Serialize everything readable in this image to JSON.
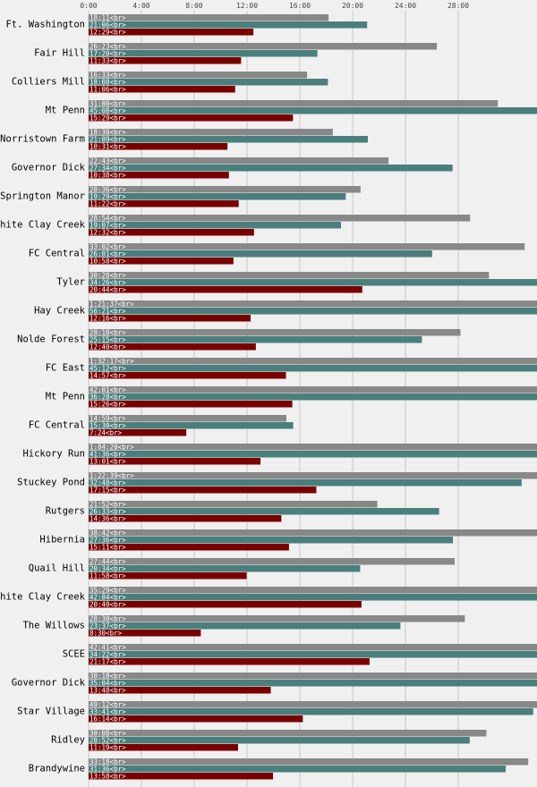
{
  "chart_data": {
    "type": "bar",
    "orientation": "horizontal",
    "grid": true,
    "xlim_minutes": [
      0,
      34
    ],
    "x_ticks": [
      "0:00",
      "4:00",
      "8:00",
      "12:00",
      "16:00",
      "20:00",
      "24:00",
      "28:00"
    ],
    "colors": [
      "#888888",
      "#4a7f7d",
      "#7a0000"
    ],
    "categories": [
      "Ft. Washington",
      "Fair Hill",
      "Colliers Mill",
      "Mt Penn",
      "Norristown Farm",
      "Governor Dick",
      "Springton Manor",
      "White Clay Creek",
      "FC Central",
      "Tyler",
      "Hay Creek",
      "Nolde Forest",
      "FC East",
      "Mt Penn",
      "FC Central",
      "Hickory Run",
      "Stuckey Pond",
      "Rutgers",
      "Hibernia",
      "Quail Hill",
      "White Clay Creek",
      "The Willows",
      "SCEE",
      "Governor Dick",
      "Star Village",
      "Ridley",
      "Brandywine"
    ],
    "series": [
      {
        "values": [
          18.18,
          26.38,
          16.55,
          31.0,
          18.5,
          22.72,
          20.6,
          28.9,
          33.03,
          30.33,
          81.62,
          28.17,
          92.28,
          42.02,
          14.98,
          64.33,
          82.65,
          21.87,
          38.7,
          27.73,
          35.48,
          28.5,
          42.68,
          38.3,
          49.2,
          30.13,
          33.3
        ],
        "labels": [
          "18:11<br>",
          "26:23<br>",
          "16:33<br>",
          "31:00<br>",
          "18:30<br>",
          "22:43<br>",
          "20:36<br>",
          "28:54<br>",
          "33:02<br>",
          "30:20<br>",
          "1:21:37<br>",
          "28:10<br>",
          "1:32:17<br>",
          "42:01<br>",
          "14:59<br>",
          "1:04:20<br>",
          "1:22:39<br>",
          "21:52<br>",
          "38:42<br>",
          "27:44<br>",
          "35:29<br>",
          "28:30<br>",
          "42:41<br>",
          "38:18<br>",
          "49:12<br>",
          "30:08<br>",
          "33:18<br>"
        ]
      },
      {
        "values": [
          21.1,
          17.33,
          18.13,
          45.13,
          21.15,
          27.57,
          19.48,
          19.12,
          26.02,
          34.43,
          56.35,
          25.25,
          45.2,
          36.47,
          15.5,
          41.6,
          32.8,
          26.55,
          27.6,
          20.57,
          42.07,
          23.62,
          34.37,
          35.07,
          33.68,
          28.87,
          31.6
        ],
        "labels": [
          "21:06<br>",
          "17:20<br>",
          "18:08<br>",
          "45:08<br>",
          "21:09<br>",
          "27:34<br>",
          "19:29<br>",
          "19:07<br>",
          "26:01<br>",
          "34:26<br>",
          "56:21<br>",
          "25:15<br>",
          "45:12<br>",
          "36:28<br>",
          "15:30<br>",
          "41:36<br>",
          "32:48<br>",
          "26:33<br>",
          "27:36<br>",
          "20:34<br>",
          "42:04<br>",
          "23:37<br>",
          "34:22<br>",
          "35:04<br>",
          "33:41<br>",
          "28:52<br>",
          "31:36<br>"
        ]
      },
      {
        "values": [
          12.48,
          11.55,
          11.1,
          15.48,
          10.52,
          10.63,
          11.37,
          12.53,
          10.97,
          20.73,
          12.27,
          12.67,
          14.95,
          15.43,
          7.4,
          13.02,
          17.25,
          14.6,
          15.18,
          11.97,
          20.67,
          8.5,
          21.28,
          13.8,
          16.23,
          11.32,
          13.97
        ],
        "labels": [
          "12:29<br>",
          "11:33<br>",
          "11:06<br>",
          "15:29<br>",
          "10:31<br>",
          "10:38<br>",
          "11:22<br>",
          "12:32<br>",
          "10:58<br>",
          "20:44<br>",
          "12:16<br>",
          "12:40<br>",
          "14:57<br>",
          "15:26<br>",
          "7:24<br>",
          "13:01<br>",
          "17:15<br>",
          "14:36<br>",
          "15:11<br>",
          "11:58<br>",
          "20:40<br>",
          "8:30<br>",
          "21:17<br>",
          "13:48<br>",
          "16:14<br>",
          "11:19<br>",
          "13:58<br>"
        ]
      }
    ]
  }
}
